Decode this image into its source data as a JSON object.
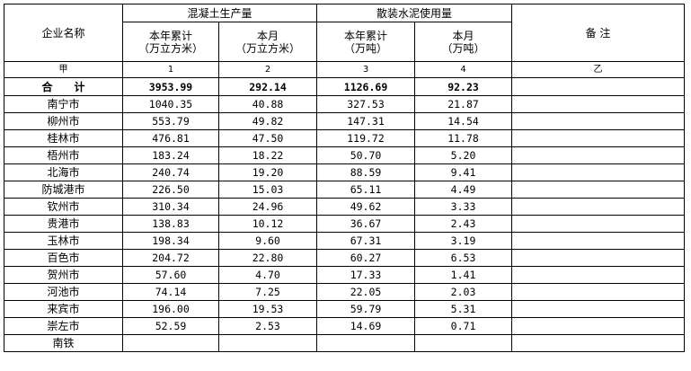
{
  "header": {
    "company_name": "企业名称",
    "group_concrete": "混凝土生产量",
    "group_cement": "散装水泥使用量",
    "remarks": "备 注",
    "sub": [
      {
        "line1": "本年累计",
        "line2": "（万立方米）"
      },
      {
        "line1": "本月",
        "line2": "（万立方米）"
      },
      {
        "line1": "本年累计",
        "line2": "（万吨）"
      },
      {
        "line1": "本月",
        "line2": "（万吨）"
      }
    ],
    "index": [
      "甲",
      "1",
      "2",
      "3",
      "4",
      "乙"
    ]
  },
  "total": {
    "label": "合　　计",
    "values": [
      "3953.99",
      "292.14",
      "1126.69",
      "92.23"
    ]
  },
  "rows": [
    {
      "name": "南宁市",
      "values": [
        "1040.35",
        "40.88",
        "327.53",
        "21.87"
      ]
    },
    {
      "name": "柳州市",
      "values": [
        "553.79",
        "49.82",
        "147.31",
        "14.54"
      ]
    },
    {
      "name": "桂林市",
      "values": [
        "476.81",
        "47.50",
        "119.72",
        "11.78"
      ]
    },
    {
      "name": "梧州市",
      "values": [
        "183.24",
        "18.22",
        "50.70",
        "5.20"
      ]
    },
    {
      "name": "北海市",
      "values": [
        "240.74",
        "19.20",
        "88.59",
        "9.41"
      ]
    },
    {
      "name": "防城港市",
      "values": [
        "226.50",
        "15.03",
        "65.11",
        "4.49"
      ]
    },
    {
      "name": "钦州市",
      "values": [
        "310.34",
        "24.96",
        "49.62",
        "3.33"
      ]
    },
    {
      "name": "贵港市",
      "values": [
        "138.83",
        "10.12",
        "36.67",
        "2.43"
      ]
    },
    {
      "name": "玉林市",
      "values": [
        "198.34",
        "9.60",
        "67.31",
        "3.19"
      ]
    },
    {
      "name": "百色市",
      "values": [
        "204.72",
        "22.80",
        "60.27",
        "6.53"
      ]
    },
    {
      "name": "贺州市",
      "values": [
        "57.60",
        "4.70",
        "17.33",
        "1.41"
      ]
    },
    {
      "name": "河池市",
      "values": [
        "74.14",
        "7.25",
        "22.05",
        "2.03"
      ]
    },
    {
      "name": "来宾市",
      "values": [
        "196.00",
        "19.53",
        "59.79",
        "5.31"
      ]
    },
    {
      "name": "崇左市",
      "values": [
        "52.59",
        "2.53",
        "14.69",
        "0.71"
      ]
    },
    {
      "name": "南铁",
      "values": [
        "",
        "",
        "",
        ""
      ]
    }
  ]
}
